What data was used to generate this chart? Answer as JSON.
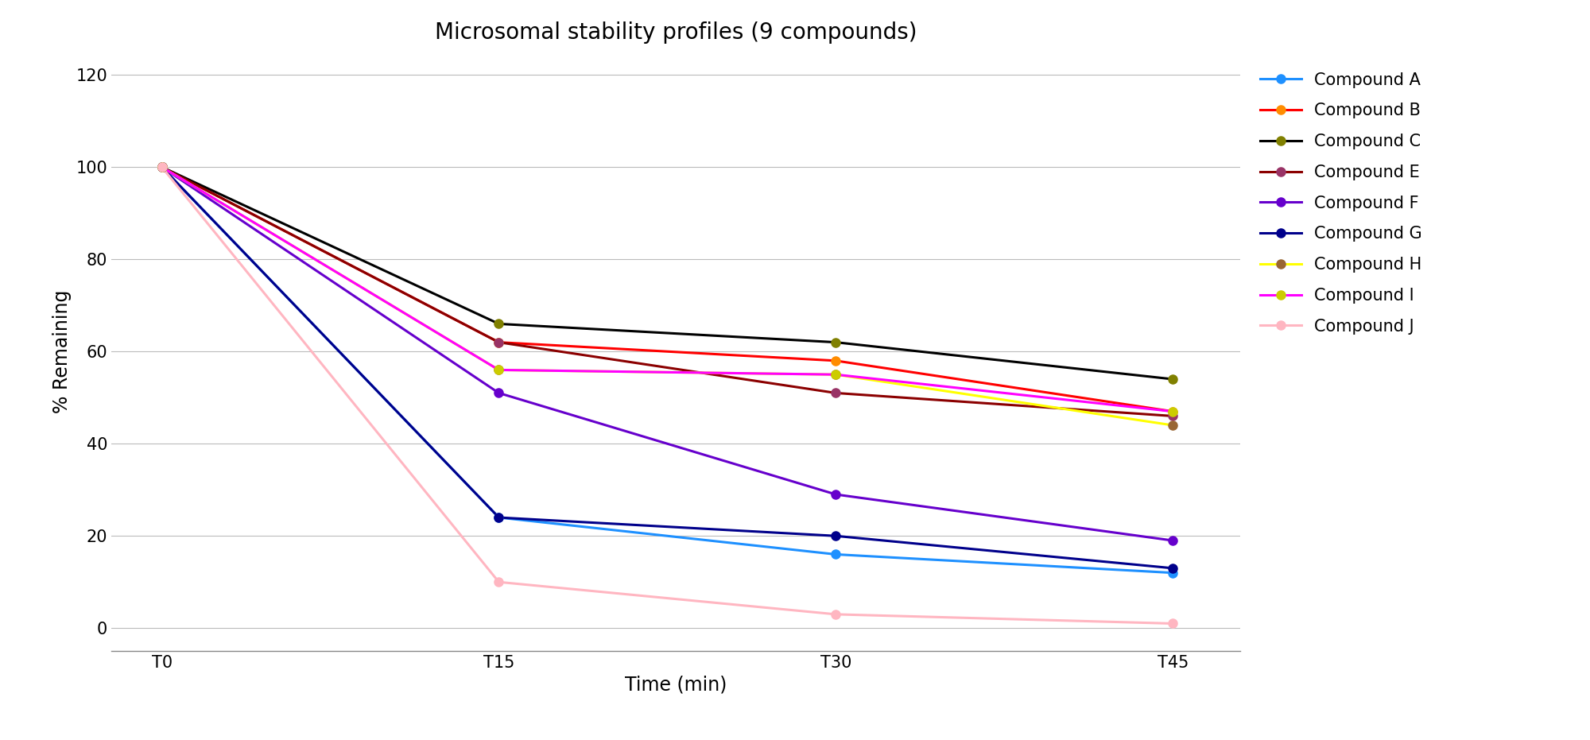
{
  "title": "Microsomal stability profiles (9 compounds)",
  "xlabel": "Time (min)",
  "ylabel": "% Remaining",
  "x_ticks": [
    "T0",
    "T15",
    "T30",
    "T45"
  ],
  "x_values": [
    0,
    1,
    2,
    3
  ],
  "ylim": [
    -5,
    125
  ],
  "yticks": [
    0,
    20,
    40,
    60,
    80,
    100,
    120
  ],
  "compounds": [
    {
      "name": "Compound A",
      "color": "#1E90FF",
      "marker_color": "#1E90FF",
      "values": [
        100,
        24,
        16,
        12
      ]
    },
    {
      "name": "Compound B",
      "color": "#FF0000",
      "marker_color": "#FF8C00",
      "values": [
        100,
        62,
        58,
        47
      ]
    },
    {
      "name": "Compound C",
      "color": "#000000",
      "marker_color": "#808000",
      "values": [
        100,
        66,
        62,
        54
      ]
    },
    {
      "name": "Compound E",
      "color": "#8B0000",
      "marker_color": "#993366",
      "values": [
        100,
        62,
        51,
        46
      ]
    },
    {
      "name": "Compound F",
      "color": "#6600CC",
      "marker_color": "#6600CC",
      "values": [
        100,
        51,
        29,
        19
      ]
    },
    {
      "name": "Compound G",
      "color": "#00008B",
      "marker_color": "#00008B",
      "values": [
        100,
        24,
        20,
        13
      ]
    },
    {
      "name": "Compound H",
      "color": "#FFFF00",
      "marker_color": "#996633",
      "values": [
        100,
        56,
        55,
        44
      ]
    },
    {
      "name": "Compound I",
      "color": "#FF00FF",
      "marker_color": "#CCCC00",
      "values": [
        100,
        56,
        55,
        47
      ]
    },
    {
      "name": "Compound J",
      "color": "#FFB6C1",
      "marker_color": "#FFB6C1",
      "values": [
        100,
        10,
        3,
        1
      ]
    }
  ],
  "bg_color": "#FFFFFF",
  "grid_color": "#BBBBBB",
  "title_fontsize": 20,
  "label_fontsize": 17,
  "tick_fontsize": 15,
  "legend_fontsize": 15,
  "linewidth": 2.2,
  "markersize": 8
}
